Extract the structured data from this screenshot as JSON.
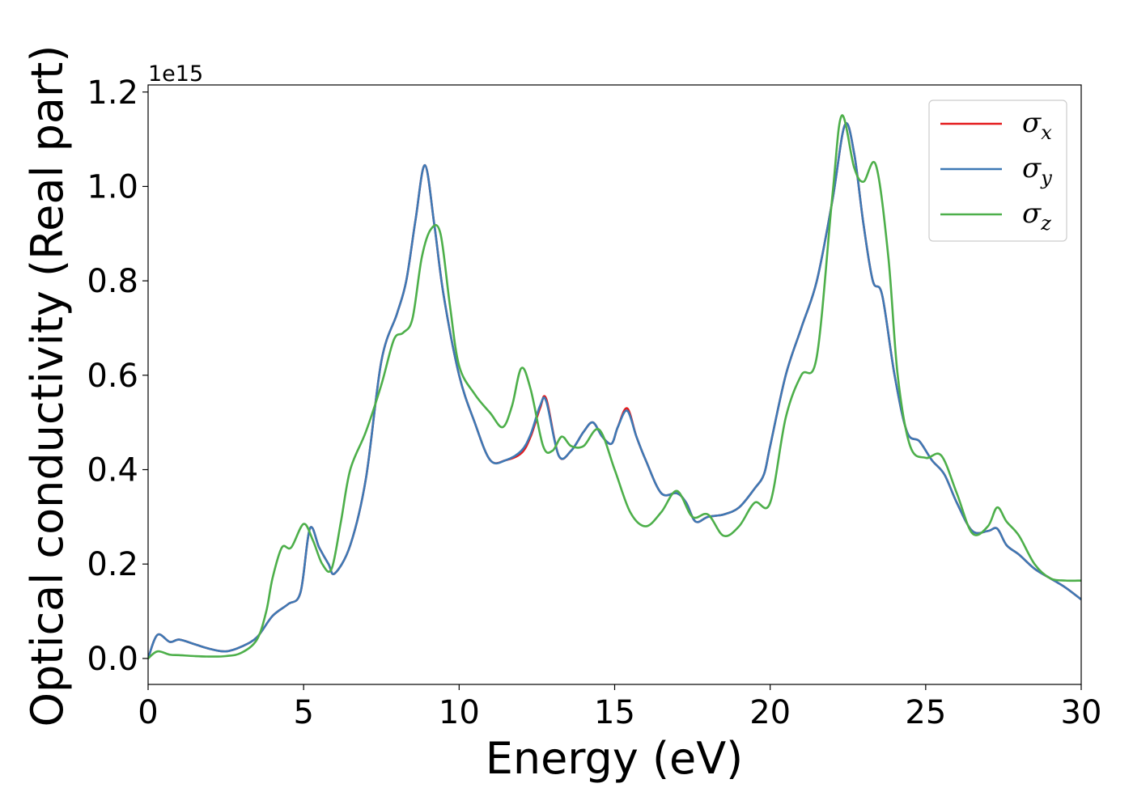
{
  "chart_data": {
    "type": "line",
    "xlabel": "Energy (eV)",
    "ylabel": "Optical conductivity (Real part)",
    "y_offset_label": "1e15",
    "xlim": [
      0,
      30
    ],
    "ylim": [
      -0.055,
      1.215
    ],
    "xticks": [
      "0",
      "5",
      "10",
      "15",
      "20",
      "25",
      "30"
    ],
    "yticks": [
      "0.0",
      "0.2",
      "0.4",
      "0.6",
      "0.8",
      "1.0",
      "1.2"
    ],
    "legend_position": "top-right",
    "grid": false,
    "series": [
      {
        "name": "σx",
        "symbol": "σ",
        "subscript": "x",
        "color": "#e41a1c",
        "x": [
          0,
          0.3,
          0.7,
          1.0,
          1.5,
          2.0,
          2.5,
          3.0,
          3.5,
          4.0,
          4.5,
          4.9,
          5.2,
          5.5,
          5.8,
          6.0,
          6.5,
          7.0,
          7.5,
          8.0,
          8.3,
          8.6,
          8.9,
          9.2,
          9.5,
          10.0,
          10.5,
          11.0,
          11.5,
          12.0,
          12.3,
          12.6,
          12.8,
          13.2,
          13.6,
          14.0,
          14.3,
          14.6,
          14.9,
          15.1,
          15.4,
          15.7,
          16.0,
          16.5,
          17.0,
          17.3,
          17.6,
          18.0,
          18.5,
          19.0,
          19.5,
          19.8,
          20.0,
          20.5,
          21.0,
          21.5,
          22.0,
          22.4,
          22.7,
          23.0,
          23.3,
          23.6,
          24.0,
          24.4,
          24.8,
          25.2,
          25.6,
          26.0,
          26.5,
          27.0,
          27.3,
          27.6,
          28.0,
          28.5,
          29.0,
          29.5,
          30.0
        ],
        "y": [
          0.0,
          0.05,
          0.035,
          0.04,
          0.03,
          0.02,
          0.015,
          0.025,
          0.045,
          0.09,
          0.115,
          0.14,
          0.275,
          0.235,
          0.2,
          0.18,
          0.24,
          0.38,
          0.63,
          0.73,
          0.8,
          0.93,
          1.045,
          0.92,
          0.77,
          0.6,
          0.5,
          0.42,
          0.42,
          0.435,
          0.47,
          0.53,
          0.55,
          0.43,
          0.44,
          0.48,
          0.5,
          0.47,
          0.455,
          0.49,
          0.53,
          0.47,
          0.42,
          0.35,
          0.35,
          0.33,
          0.29,
          0.3,
          0.305,
          0.32,
          0.36,
          0.39,
          0.45,
          0.6,
          0.7,
          0.8,
          0.97,
          1.13,
          1.07,
          0.92,
          0.8,
          0.77,
          0.6,
          0.48,
          0.46,
          0.42,
          0.39,
          0.33,
          0.27,
          0.27,
          0.275,
          0.24,
          0.22,
          0.19,
          0.17,
          0.15,
          0.125
        ]
      },
      {
        "name": "σy",
        "symbol": "σ",
        "subscript": "y",
        "color": "#3d79b5",
        "x": [
          0,
          0.3,
          0.7,
          1.0,
          1.5,
          2.0,
          2.5,
          3.0,
          3.5,
          4.0,
          4.5,
          4.9,
          5.2,
          5.5,
          5.8,
          6.0,
          6.5,
          7.0,
          7.5,
          8.0,
          8.3,
          8.6,
          8.9,
          9.2,
          9.5,
          10.0,
          10.5,
          11.0,
          11.5,
          12.0,
          12.3,
          12.6,
          12.8,
          13.2,
          13.6,
          14.0,
          14.3,
          14.6,
          14.9,
          15.1,
          15.4,
          15.7,
          16.0,
          16.5,
          17.0,
          17.3,
          17.6,
          18.0,
          18.5,
          19.0,
          19.5,
          19.8,
          20.0,
          20.5,
          21.0,
          21.5,
          22.0,
          22.4,
          22.7,
          23.0,
          23.3,
          23.6,
          24.0,
          24.4,
          24.8,
          25.2,
          25.6,
          26.0,
          26.5,
          27.0,
          27.3,
          27.6,
          28.0,
          28.5,
          29.0,
          29.5,
          30.0
        ],
        "y": [
          0.0,
          0.05,
          0.035,
          0.04,
          0.03,
          0.02,
          0.015,
          0.025,
          0.045,
          0.09,
          0.115,
          0.14,
          0.275,
          0.235,
          0.2,
          0.18,
          0.24,
          0.38,
          0.63,
          0.73,
          0.8,
          0.93,
          1.045,
          0.92,
          0.77,
          0.6,
          0.5,
          0.42,
          0.42,
          0.44,
          0.475,
          0.535,
          0.545,
          0.43,
          0.44,
          0.48,
          0.5,
          0.47,
          0.455,
          0.49,
          0.525,
          0.47,
          0.42,
          0.35,
          0.35,
          0.33,
          0.29,
          0.3,
          0.305,
          0.32,
          0.36,
          0.39,
          0.45,
          0.6,
          0.7,
          0.8,
          0.97,
          1.13,
          1.07,
          0.92,
          0.8,
          0.77,
          0.6,
          0.48,
          0.46,
          0.42,
          0.39,
          0.33,
          0.27,
          0.27,
          0.275,
          0.24,
          0.22,
          0.19,
          0.17,
          0.15,
          0.125
        ]
      },
      {
        "name": "σz",
        "symbol": "σ",
        "subscript": "z",
        "color": "#4daf4a",
        "x": [
          0,
          0.3,
          0.7,
          1.0,
          1.5,
          2.0,
          2.5,
          3.0,
          3.5,
          3.8,
          4.0,
          4.3,
          4.6,
          5.0,
          5.3,
          5.6,
          5.9,
          6.2,
          6.5,
          7.0,
          7.5,
          7.9,
          8.2,
          8.5,
          8.8,
          9.1,
          9.4,
          9.7,
          10.0,
          10.5,
          11.0,
          11.4,
          11.7,
          12.0,
          12.3,
          12.7,
          13.0,
          13.3,
          13.6,
          14.0,
          14.5,
          15.0,
          15.5,
          16.0,
          16.5,
          17.0,
          17.5,
          18.0,
          18.5,
          19.0,
          19.5,
          20.0,
          20.5,
          21.0,
          21.5,
          22.0,
          22.3,
          22.7,
          23.0,
          23.4,
          23.8,
          24.1,
          24.5,
          25.0,
          25.5,
          26.0,
          26.5,
          27.0,
          27.3,
          27.6,
          28.0,
          28.5,
          29.0,
          29.5,
          30.0
        ],
        "y": [
          0.0,
          0.015,
          0.008,
          0.007,
          0.005,
          0.004,
          0.005,
          0.012,
          0.04,
          0.1,
          0.17,
          0.235,
          0.235,
          0.285,
          0.25,
          0.2,
          0.19,
          0.29,
          0.4,
          0.48,
          0.58,
          0.675,
          0.69,
          0.72,
          0.85,
          0.91,
          0.9,
          0.75,
          0.62,
          0.56,
          0.52,
          0.49,
          0.535,
          0.615,
          0.57,
          0.45,
          0.44,
          0.47,
          0.45,
          0.45,
          0.485,
          0.4,
          0.31,
          0.28,
          0.31,
          0.355,
          0.3,
          0.305,
          0.26,
          0.28,
          0.33,
          0.33,
          0.51,
          0.6,
          0.64,
          0.98,
          1.15,
          1.04,
          1.01,
          1.045,
          0.85,
          0.6,
          0.45,
          0.425,
          0.43,
          0.35,
          0.265,
          0.28,
          0.32,
          0.29,
          0.26,
          0.2,
          0.17,
          0.165,
          0.165
        ]
      }
    ]
  }
}
